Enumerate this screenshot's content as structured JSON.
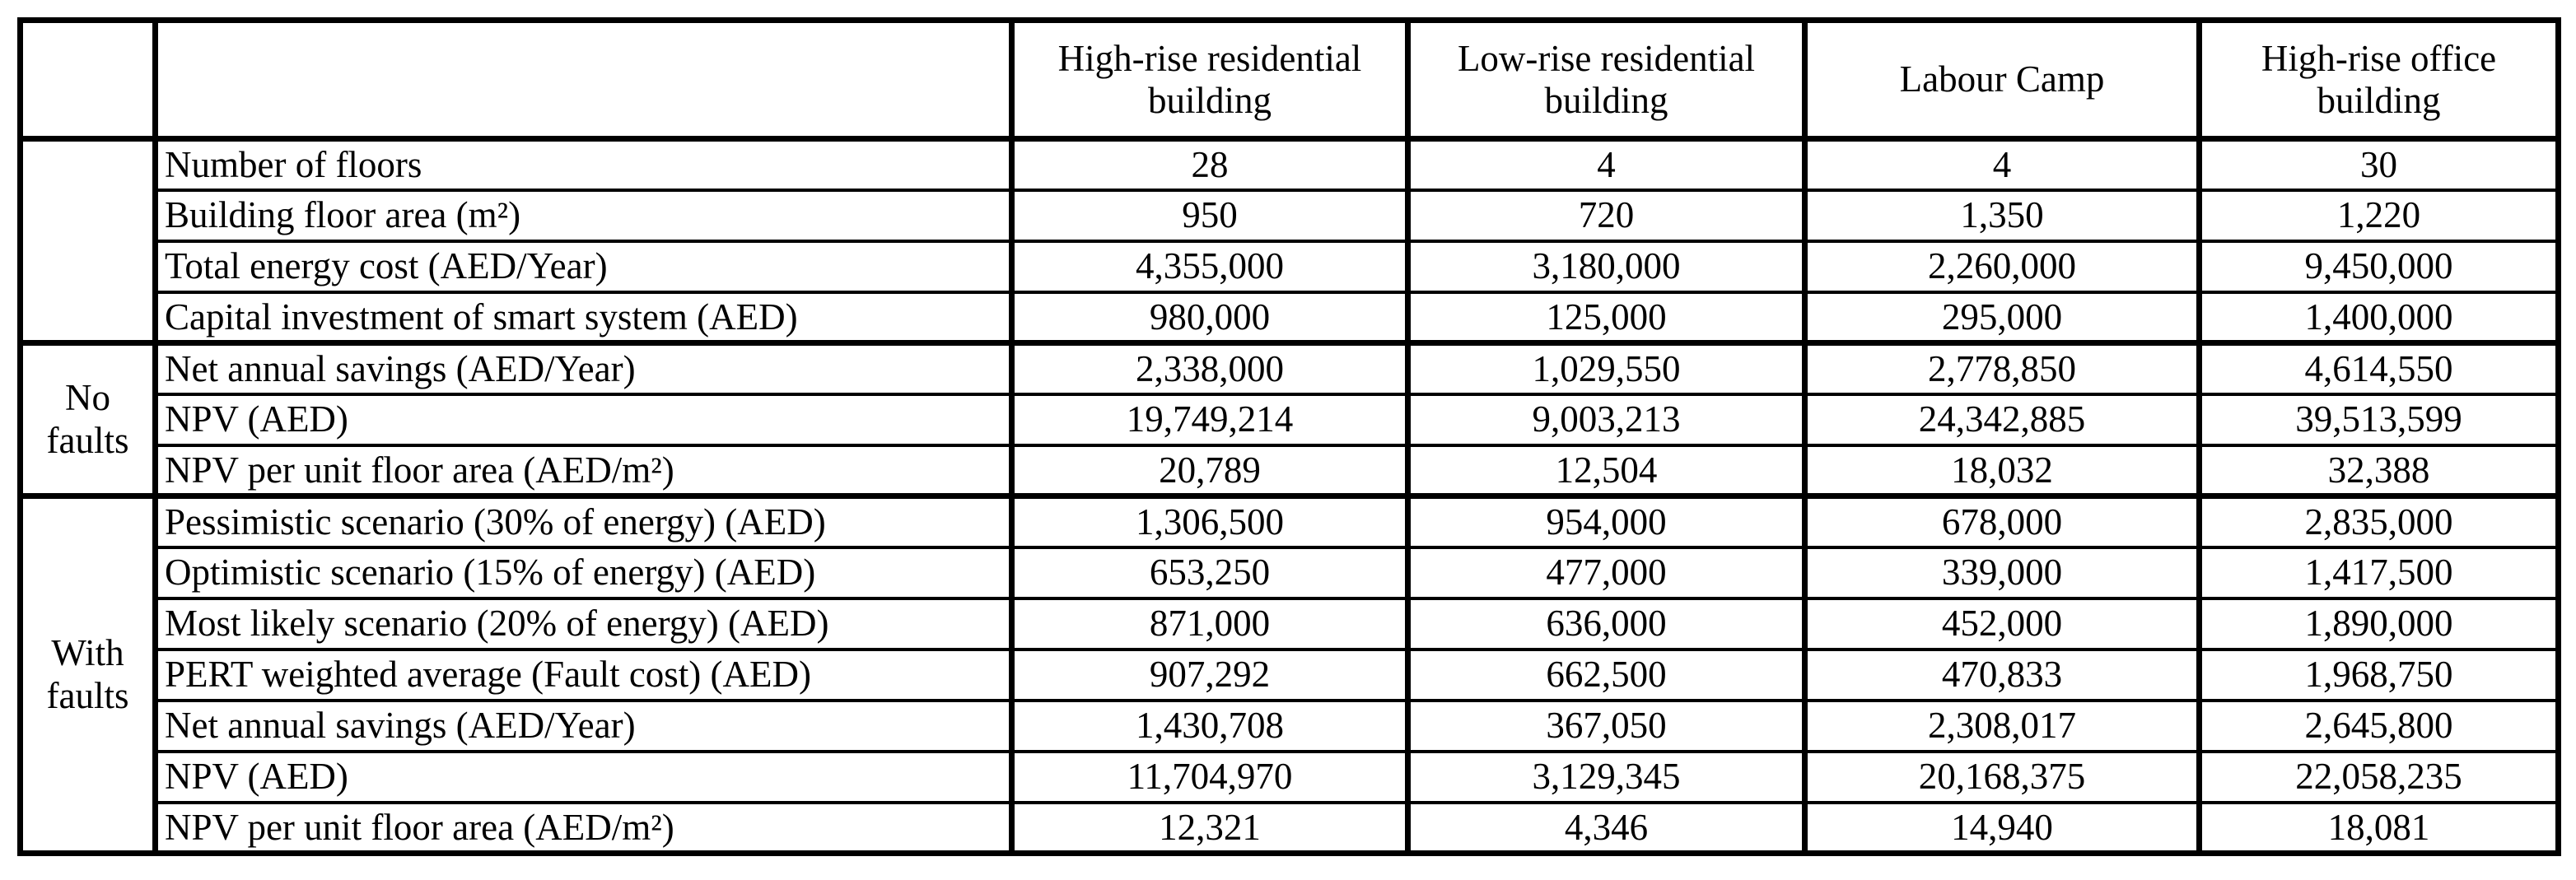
{
  "page": {
    "background": "#ffffff",
    "text_color": "#000000",
    "border_color": "#000000"
  },
  "table": {
    "column_headers": [
      "High-rise residential building",
      "Low-rise residential building",
      "Labour Camp",
      "High-rise office building"
    ],
    "groups": [
      {
        "label": "",
        "rows": [
          {
            "label": "Number of floors",
            "bold": false,
            "values": [
              "28",
              "4",
              "4",
              "30"
            ]
          },
          {
            "label": "Building floor area (m²)",
            "bold": false,
            "values": [
              "950",
              "720",
              "1,350",
              "1,220"
            ]
          },
          {
            "label": "Total energy cost (AED/Year)",
            "bold": false,
            "values": [
              "4,355,000",
              "3,180,000",
              "2,260,000",
              "9,450,000"
            ]
          },
          {
            "label": "Capital investment of smart system (AED)",
            "bold": false,
            "values": [
              "980,000",
              "125,000",
              "295,000",
              "1,400,000"
            ]
          }
        ]
      },
      {
        "label": "No faults",
        "rows": [
          {
            "label": "Net annual savings (AED/Year)",
            "bold": false,
            "values": [
              "2,338,000",
              "1,029,550",
              "2,778,850",
              "4,614,550"
            ]
          },
          {
            "label": "NPV (AED)",
            "bold": true,
            "values": [
              "19,749,214",
              "9,003,213",
              "24,342,885",
              "39,513,599"
            ]
          },
          {
            "label": "NPV per unit floor area (AED/m²)",
            "bold": false,
            "values": [
              "20,789",
              "12,504",
              "18,032",
              "32,388"
            ]
          }
        ]
      },
      {
        "label": "With faults",
        "rows": [
          {
            "label": "Pessimistic scenario (30% of energy) (AED)",
            "bold": false,
            "values": [
              "1,306,500",
              "954,000",
              "678,000",
              "2,835,000"
            ]
          },
          {
            "label": "Optimistic scenario (15% of energy) (AED)",
            "bold": false,
            "values": [
              "653,250",
              "477,000",
              "339,000",
              "1,417,500"
            ]
          },
          {
            "label": "Most likely scenario (20% of energy) (AED)",
            "bold": false,
            "values": [
              "871,000",
              "636,000",
              "452,000",
              "1,890,000"
            ]
          },
          {
            "label": "PERT weighted average (Fault cost) (AED)",
            "bold": false,
            "values": [
              "907,292",
              "662,500",
              "470,833",
              "1,968,750"
            ]
          },
          {
            "label": "Net annual savings (AED/Year)",
            "bold": false,
            "values": [
              "1,430,708",
              "367,050",
              "2,308,017",
              "2,645,800"
            ]
          },
          {
            "label": "NPV (AED)",
            "bold": true,
            "values": [
              "11,704,970",
              "3,129,345",
              "20,168,375",
              "22,058,235"
            ]
          },
          {
            "label": "NPV per unit floor area (AED/m²)",
            "bold": false,
            "values": [
              "12,321",
              "4,346",
              "14,940",
              "18,081"
            ]
          }
        ]
      }
    ]
  }
}
